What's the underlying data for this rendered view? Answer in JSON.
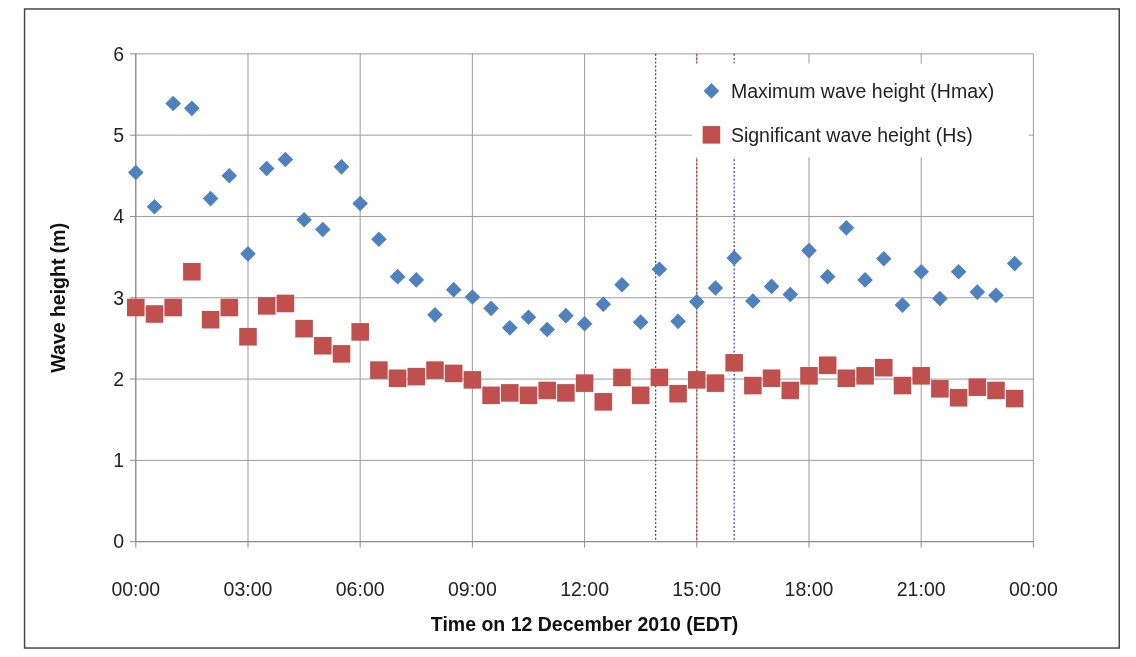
{
  "chart_data": {
    "type": "scatter",
    "xlabel": "Time on 12 December 2010 (EDT)",
    "ylabel": "Wave height (m)",
    "x": [
      0,
      0.5,
      1,
      1.5,
      2,
      2.5,
      3,
      3.5,
      4,
      4.5,
      5,
      5.5,
      6,
      6.5,
      7,
      7.5,
      8,
      8.5,
      9,
      9.5,
      10,
      10.5,
      11,
      11.5,
      12,
      12.5,
      13,
      13.5,
      14,
      14.5,
      15,
      15.5,
      16,
      16.5,
      17,
      17.5,
      18,
      18.5,
      19,
      19.5,
      20,
      20.5,
      21,
      21.5,
      22,
      22.5,
      23,
      23.5
    ],
    "series": [
      {
        "name": "Maximum wave height (Hmax)",
        "color": "#4f81bd",
        "marker": "diamond",
        "values": [
          4.54,
          4.12,
          5.39,
          5.33,
          4.22,
          4.5,
          3.54,
          4.59,
          4.7,
          3.96,
          3.84,
          4.61,
          4.16,
          3.72,
          3.26,
          3.22,
          2.79,
          3.1,
          3.01,
          2.87,
          2.63,
          2.76,
          2.61,
          2.78,
          2.68,
          2.92,
          3.16,
          2.7,
          3.35,
          2.71,
          2.95,
          3.12,
          3.49,
          2.96,
          3.14,
          3.04,
          3.58,
          3.26,
          3.86,
          3.22,
          3.48,
          2.91,
          3.32,
          2.99,
          3.32,
          3.07,
          3.03,
          3.42
        ]
      },
      {
        "name": "Significant wave height (Hs)",
        "color": "#c0504d",
        "marker": "square",
        "values": [
          2.88,
          2.8,
          2.88,
          3.32,
          2.73,
          2.88,
          2.52,
          2.9,
          2.93,
          2.62,
          2.41,
          2.31,
          2.58,
          2.11,
          2.01,
          2.03,
          2.11,
          2.07,
          1.99,
          1.8,
          1.83,
          1.8,
          1.86,
          1.83,
          1.95,
          1.72,
          2.02,
          1.8,
          2.02,
          1.82,
          1.99,
          1.95,
          2.2,
          1.92,
          2.01,
          1.86,
          2.04,
          2.17,
          2.01,
          2.04,
          2.14,
          1.92,
          2.04,
          1.88,
          1.77,
          1.9,
          1.86,
          1.76
        ]
      }
    ],
    "xlim": [
      0,
      24
    ],
    "xticks": [
      {
        "value": 0,
        "label": "00:00"
      },
      {
        "value": 3,
        "label": "03:00"
      },
      {
        "value": 6,
        "label": "06:00"
      },
      {
        "value": 9,
        "label": "09:00"
      },
      {
        "value": 12,
        "label": "12:00"
      },
      {
        "value": 15,
        "label": "15:00"
      },
      {
        "value": 18,
        "label": "18:00"
      },
      {
        "value": 21,
        "label": "21:00"
      },
      {
        "value": 24,
        "label": "00:00"
      }
    ],
    "ylim": [
      0,
      6
    ],
    "yticks": [
      0,
      1,
      2,
      3,
      4,
      5,
      6
    ],
    "ref_lines": [
      {
        "axis": "x",
        "value": 13.9,
        "color": "#3333aa",
        "line_style": "dotted"
      },
      {
        "axis": "x",
        "value": 15,
        "color": "#dd2222",
        "line_style": "dotted"
      },
      {
        "axis": "x",
        "value": 16,
        "color": "#3333aa",
        "line_style": "dotted"
      }
    ],
    "grid": true,
    "legend": "top right"
  }
}
